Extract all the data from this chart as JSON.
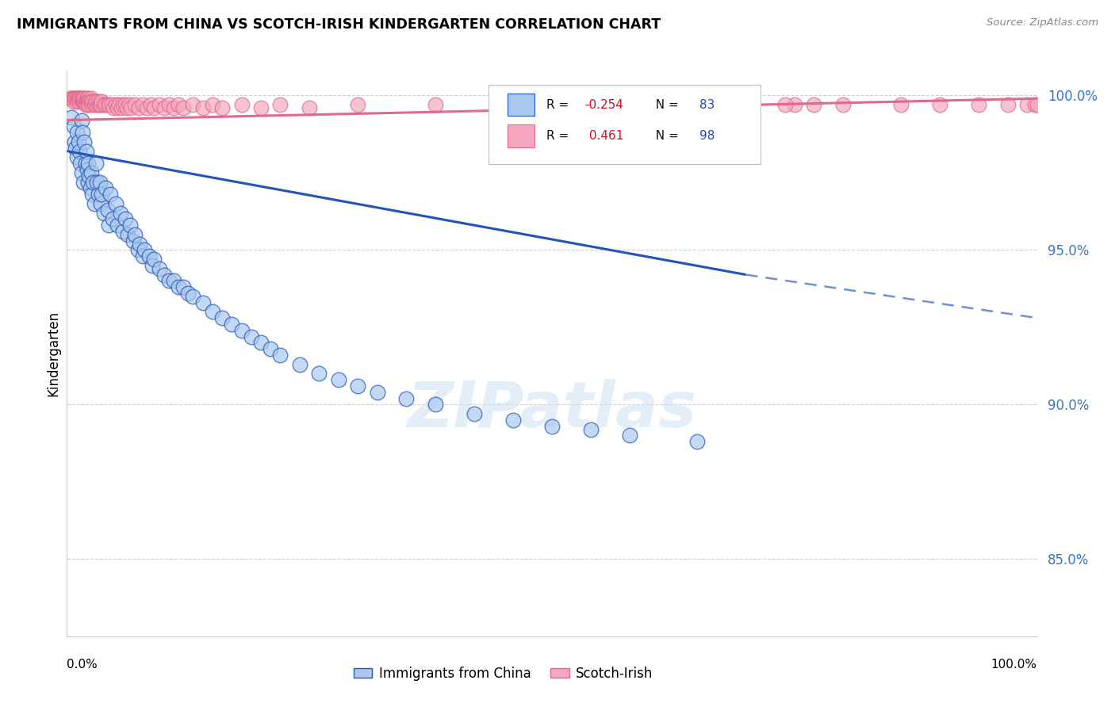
{
  "title": "IMMIGRANTS FROM CHINA VS SCOTCH-IRISH KINDERGARTEN CORRELATION CHART",
  "source": "Source: ZipAtlas.com",
  "ylabel": "Kindergarten",
  "legend_china": "Immigrants from China",
  "legend_scotch": "Scotch-Irish",
  "R_china": -0.254,
  "N_china": 83,
  "R_scotch": 0.461,
  "N_scotch": 98,
  "y_ticks": [
    0.85,
    0.9,
    0.95,
    1.0
  ],
  "y_tick_labels": [
    "85.0%",
    "90.0%",
    "95.0%",
    "100.0%"
  ],
  "x_range": [
    0.0,
    1.0
  ],
  "y_range": [
    0.825,
    1.008
  ],
  "color_china": "#aac8ee",
  "color_china_line": "#2255bb",
  "color_scotch": "#f5a8c0",
  "color_scotch_line": "#e06888",
  "watermark": "ZIPatlas",
  "china_line_x0": 0.0,
  "china_line_y0": 0.982,
  "china_line_x1": 0.7,
  "china_line_y1": 0.942,
  "china_line_dash_x1": 1.0,
  "china_line_dash_y1": 0.928,
  "scotch_line_x0": 0.0,
  "scotch_line_y0": 0.992,
  "scotch_line_x1": 1.0,
  "scotch_line_y1": 0.999,
  "china_pts_x": [
    0.005,
    0.007,
    0.008,
    0.009,
    0.01,
    0.01,
    0.012,
    0.013,
    0.014,
    0.015,
    0.015,
    0.016,
    0.017,
    0.018,
    0.019,
    0.02,
    0.021,
    0.022,
    0.022,
    0.023,
    0.024,
    0.025,
    0.026,
    0.027,
    0.028,
    0.03,
    0.031,
    0.032,
    0.034,
    0.035,
    0.036,
    0.038,
    0.04,
    0.042,
    0.043,
    0.045,
    0.047,
    0.05,
    0.052,
    0.055,
    0.058,
    0.06,
    0.063,
    0.065,
    0.068,
    0.07,
    0.073,
    0.075,
    0.078,
    0.08,
    0.085,
    0.088,
    0.09,
    0.095,
    0.1,
    0.105,
    0.11,
    0.115,
    0.12,
    0.125,
    0.13,
    0.14,
    0.15,
    0.16,
    0.17,
    0.18,
    0.19,
    0.2,
    0.21,
    0.22,
    0.24,
    0.26,
    0.28,
    0.3,
    0.32,
    0.35,
    0.38,
    0.42,
    0.46,
    0.5,
    0.54,
    0.58,
    0.65
  ],
  "china_pts_y": [
    0.993,
    0.99,
    0.985,
    0.983,
    0.988,
    0.98,
    0.985,
    0.982,
    0.978,
    0.992,
    0.975,
    0.988,
    0.972,
    0.985,
    0.978,
    0.982,
    0.976,
    0.978,
    0.972,
    0.974,
    0.97,
    0.975,
    0.968,
    0.972,
    0.965,
    0.978,
    0.972,
    0.968,
    0.972,
    0.965,
    0.968,
    0.962,
    0.97,
    0.963,
    0.958,
    0.968,
    0.96,
    0.965,
    0.958,
    0.962,
    0.956,
    0.96,
    0.955,
    0.958,
    0.953,
    0.955,
    0.95,
    0.952,
    0.948,
    0.95,
    0.948,
    0.945,
    0.947,
    0.944,
    0.942,
    0.94,
    0.94,
    0.938,
    0.938,
    0.936,
    0.935,
    0.933,
    0.93,
    0.928,
    0.926,
    0.924,
    0.922,
    0.92,
    0.918,
    0.916,
    0.913,
    0.91,
    0.908,
    0.906,
    0.904,
    0.902,
    0.9,
    0.897,
    0.895,
    0.893,
    0.892,
    0.89,
    0.888
  ],
  "scotch_pts_x": [
    0.004,
    0.005,
    0.006,
    0.007,
    0.007,
    0.008,
    0.009,
    0.01,
    0.01,
    0.011,
    0.012,
    0.013,
    0.013,
    0.014,
    0.015,
    0.016,
    0.016,
    0.017,
    0.017,
    0.018,
    0.018,
    0.019,
    0.019,
    0.02,
    0.02,
    0.021,
    0.021,
    0.022,
    0.022,
    0.023,
    0.023,
    0.024,
    0.025,
    0.025,
    0.026,
    0.027,
    0.028,
    0.029,
    0.03,
    0.031,
    0.032,
    0.033,
    0.034,
    0.035,
    0.036,
    0.038,
    0.04,
    0.042,
    0.044,
    0.046,
    0.048,
    0.05,
    0.052,
    0.054,
    0.056,
    0.058,
    0.06,
    0.062,
    0.064,
    0.066,
    0.07,
    0.074,
    0.078,
    0.082,
    0.086,
    0.09,
    0.095,
    0.1,
    0.105,
    0.11,
    0.115,
    0.12,
    0.13,
    0.14,
    0.15,
    0.16,
    0.18,
    0.2,
    0.22,
    0.25,
    0.3,
    0.38,
    0.45,
    0.52,
    0.6,
    0.65,
    0.7,
    0.75,
    0.8,
    0.86,
    0.9,
    0.94,
    0.97,
    0.99,
    0.998,
    1.0,
    0.74,
    0.77
  ],
  "scotch_pts_y": [
    0.999,
    0.999,
    0.999,
    0.999,
    0.998,
    0.999,
    0.999,
    0.999,
    0.998,
    0.999,
    0.999,
    0.999,
    0.998,
    0.999,
    0.999,
    0.998,
    0.999,
    0.998,
    0.999,
    0.998,
    0.999,
    0.998,
    0.997,
    0.999,
    0.998,
    0.998,
    0.997,
    0.999,
    0.998,
    0.998,
    0.997,
    0.998,
    0.999,
    0.998,
    0.997,
    0.998,
    0.997,
    0.998,
    0.997,
    0.998,
    0.997,
    0.998,
    0.997,
    0.997,
    0.998,
    0.997,
    0.997,
    0.997,
    0.997,
    0.997,
    0.996,
    0.997,
    0.996,
    0.997,
    0.996,
    0.997,
    0.997,
    0.996,
    0.997,
    0.996,
    0.997,
    0.996,
    0.997,
    0.996,
    0.997,
    0.996,
    0.997,
    0.996,
    0.997,
    0.996,
    0.997,
    0.996,
    0.997,
    0.996,
    0.997,
    0.996,
    0.997,
    0.996,
    0.997,
    0.996,
    0.997,
    0.997,
    0.997,
    0.997,
    0.997,
    0.997,
    0.997,
    0.997,
    0.997,
    0.997,
    0.997,
    0.997,
    0.997,
    0.997,
    0.997,
    0.997,
    0.997,
    0.997
  ]
}
